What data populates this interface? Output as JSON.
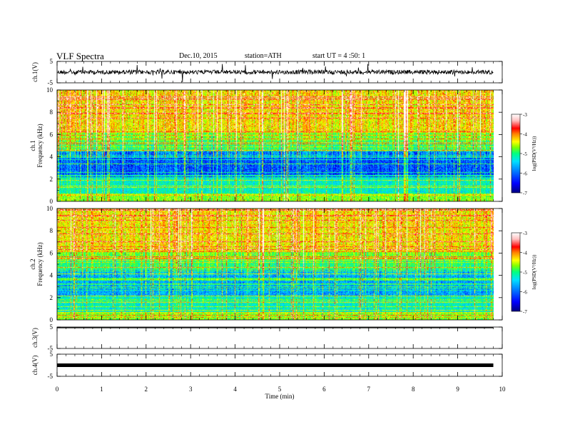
{
  "header": {
    "title": "VLF Spectra",
    "date": "Dec.10, 2015",
    "station": "station=ATH",
    "start_ut": "start  UT =  4 :50: 1"
  },
  "x_axis": {
    "label": "Time (min)",
    "ticks": [
      "0",
      "1",
      "2",
      "3",
      "4",
      "5",
      "6",
      "7",
      "8",
      "9",
      "10"
    ]
  },
  "chart_data": [
    {
      "type": "line",
      "panel": "ch1-waveform",
      "ylabel": "ch.1(V)",
      "ylim": [
        -5,
        5
      ],
      "y_ticks": [
        "5",
        "-5"
      ],
      "xlim": [
        0,
        10
      ],
      "data_end_min": 9.8,
      "level_V": 0,
      "description_values": "noisy waveform around 0 V with spikes"
    },
    {
      "type": "heatmap",
      "panel": "ch1-spectrogram",
      "ylabel_top": "ch.1",
      "ylabel": "Frequency (kHz)",
      "ylim": [
        0,
        10
      ],
      "y_ticks": [
        "0",
        "2",
        "4",
        "6",
        "8",
        "10"
      ],
      "xlim": [
        0,
        10
      ],
      "data_end_min": 9.8,
      "colorbar": {
        "label": "log(PSD(V²/Hz))",
        "range": [
          -7,
          -3
        ],
        "ticks": [
          "-3",
          "-4",
          "-5",
          "-6",
          "-7"
        ]
      }
    },
    {
      "type": "heatmap",
      "panel": "ch2-spectrogram",
      "ylabel_top": "ch.2",
      "ylabel": "Frequency (kHz)",
      "ylim": [
        0,
        10
      ],
      "y_ticks": [
        "0",
        "2",
        "4",
        "6",
        "8",
        "10"
      ],
      "xlim": [
        0,
        10
      ],
      "data_end_min": 9.8,
      "colorbar": {
        "label": "log(PSD(V²/Hz))",
        "range": [
          -7,
          -3
        ],
        "ticks": [
          "-3",
          "-4",
          "-5",
          "-6",
          "-7"
        ]
      }
    },
    {
      "type": "line",
      "panel": "ch3-waveform",
      "ylabel": "ch.3(V)",
      "ylim": [
        -5,
        5
      ],
      "y_ticks": [
        "5",
        "-5"
      ],
      "xlim": [
        0,
        10
      ],
      "data_end_min": 9.8,
      "level_V": 5
    },
    {
      "type": "line",
      "panel": "ch4-waveform",
      "ylabel": "ch.4(V)",
      "ylim": [
        -5,
        5
      ],
      "y_ticks": [
        "5",
        "-5"
      ],
      "xlim": [
        0,
        10
      ],
      "data_end_min": 9.8,
      "level_V": 0
    }
  ],
  "colors": {
    "colormap": [
      "#000080",
      "#0000ff",
      "#0080ff",
      "#00e0ff",
      "#00ff80",
      "#80ff00",
      "#ffff00",
      "#ff8000",
      "#ff0000",
      "#ffc0c0",
      "#ffffff"
    ]
  }
}
